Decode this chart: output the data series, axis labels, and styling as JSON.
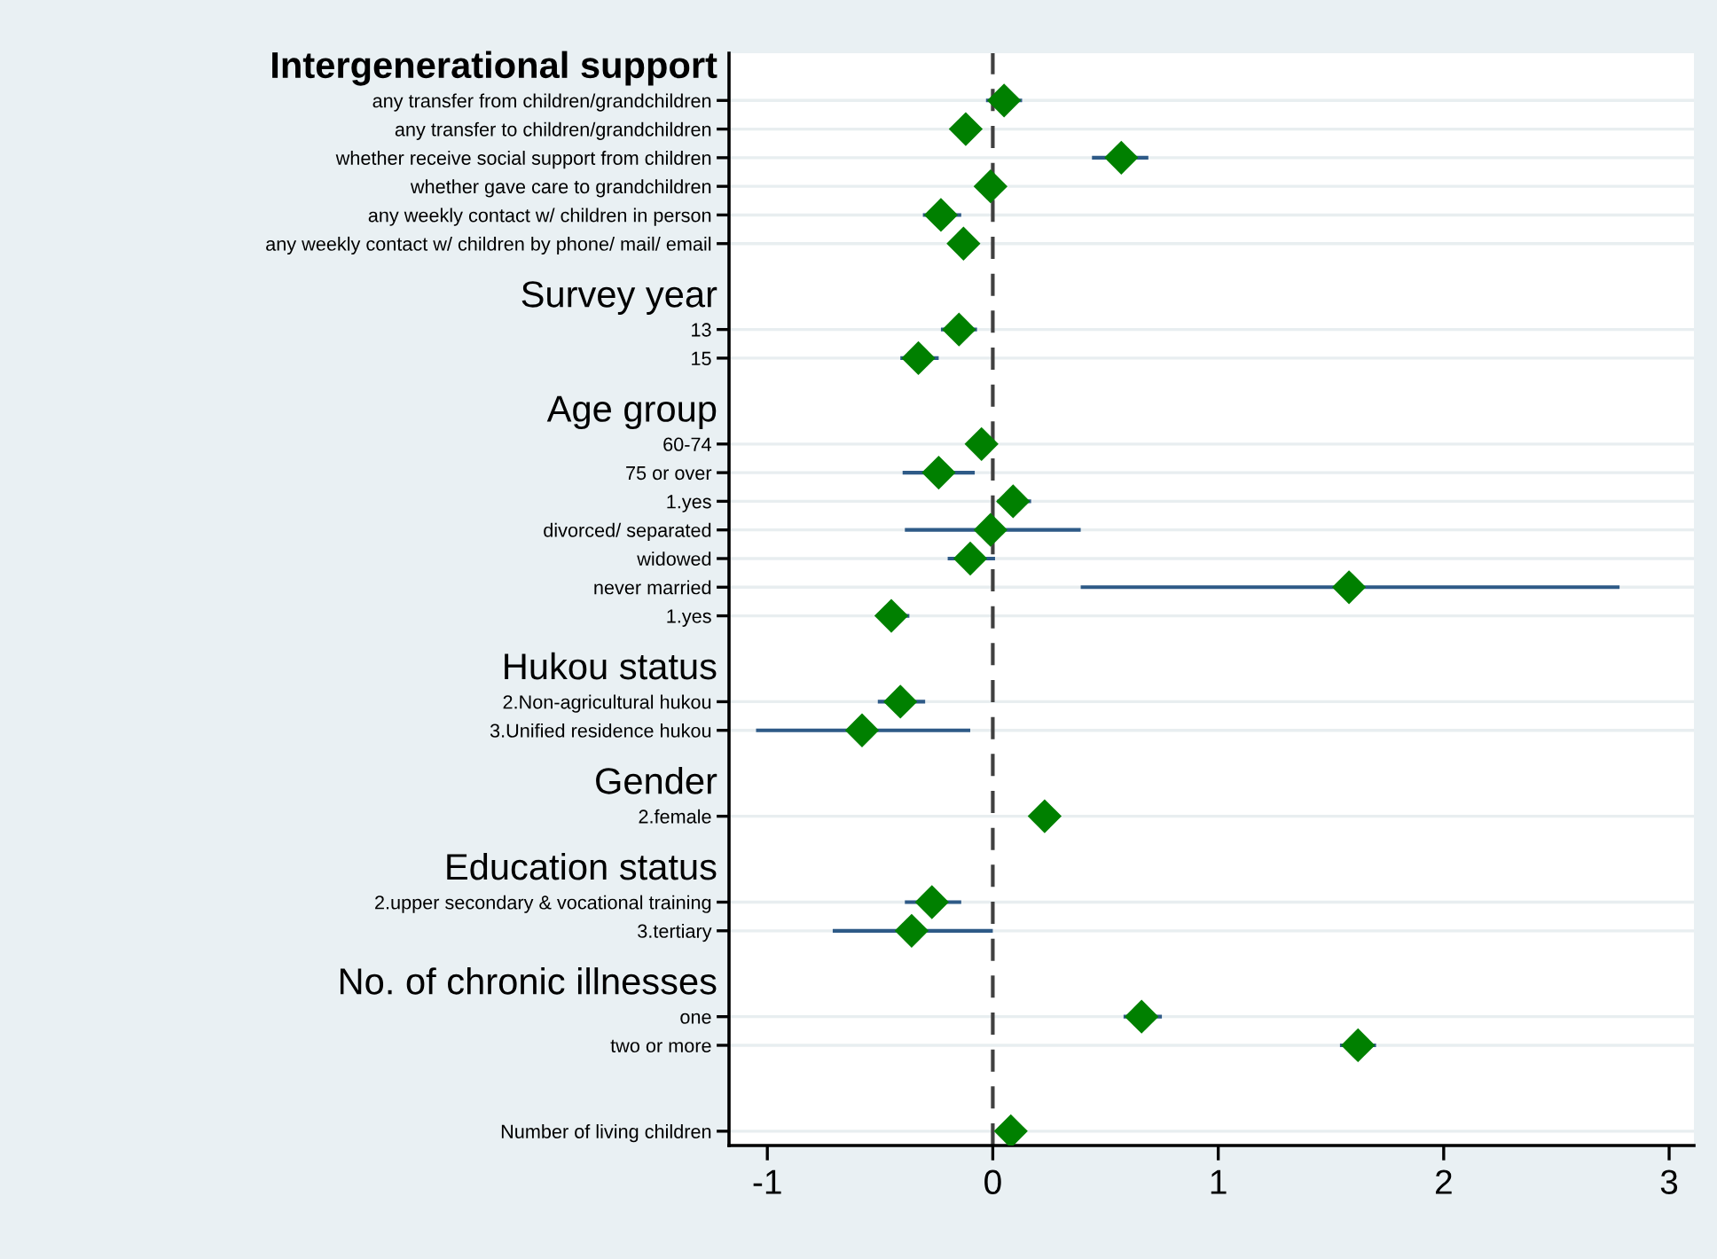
{
  "chart_data": {
    "type": "scatter",
    "orientation": "horizontal",
    "categories": [
      null,
      "any transfer from children/grandchildren",
      "any transfer to children/grandchildren",
      "whether receive social support from children",
      "whether gave care to grandchildren",
      "any weekly contact w/ children in person",
      "any weekly contact w/ children by phone/ mail/ email",
      null,
      null,
      "13",
      "15",
      null,
      null,
      "60-74",
      "75 or over",
      "1.yes",
      "divorced/ separated",
      "widowed",
      "never married",
      "1.yes",
      null,
      null,
      "2.Non-agricultural hukou",
      "3.Unified residence hukou",
      null,
      null,
      "2.female",
      null,
      null,
      "2.upper secondary & vocational training",
      "3.tertiary",
      null,
      null,
      "one",
      "two or more",
      null,
      null,
      "Number of living children"
    ],
    "values": [
      null,
      0.05,
      -0.12,
      0.57,
      -0.01,
      -0.23,
      -0.13,
      null,
      null,
      -0.15,
      -0.33,
      null,
      null,
      -0.05,
      -0.24,
      0.09,
      -0.01,
      -0.1,
      1.58,
      -0.45,
      null,
      null,
      -0.41,
      -0.58,
      null,
      null,
      0.23,
      null,
      null,
      -0.27,
      -0.36,
      null,
      null,
      0.66,
      1.62,
      null,
      null,
      0.08
    ],
    "errors": [
      null,
      [
        -0.03,
        0.13
      ],
      null,
      [
        0.44,
        0.69
      ],
      null,
      [
        -0.31,
        -0.14
      ],
      null,
      null,
      null,
      [
        -0.23,
        -0.07
      ],
      [
        -0.41,
        -0.24
      ],
      null,
      null,
      null,
      [
        -0.4,
        -0.08
      ],
      [
        0.02,
        0.17
      ],
      [
        -0.39,
        0.39
      ],
      [
        -0.2,
        0.01
      ],
      [
        0.39,
        2.78
      ],
      [
        -0.51,
        -0.37
      ],
      null,
      null,
      [
        -0.51,
        -0.3
      ],
      [
        -1.05,
        -0.1
      ],
      null,
      null,
      null,
      null,
      null,
      [
        -0.39,
        -0.14
      ],
      [
        -0.71,
        0.0
      ],
      null,
      null,
      [
        0.58,
        0.75
      ],
      [
        1.54,
        1.7
      ],
      null,
      null,
      null
    ],
    "annotations": [
      "Intergenerational support",
      "Survey year",
      "Age group",
      "Hukou status",
      "Gender",
      "Education status",
      "No. of chronic illnesses"
    ],
    "color": "#008000",
    "marker": "diamond",
    "xlim": [
      -1.17,
      3.11
    ],
    "xticks": [
      -1,
      0,
      1,
      2,
      3
    ],
    "ref_lines": [
      {
        "axis": "x",
        "value": 0,
        "line_style": "dashed",
        "color": "#404040"
      }
    ],
    "grid": "y"
  }
}
